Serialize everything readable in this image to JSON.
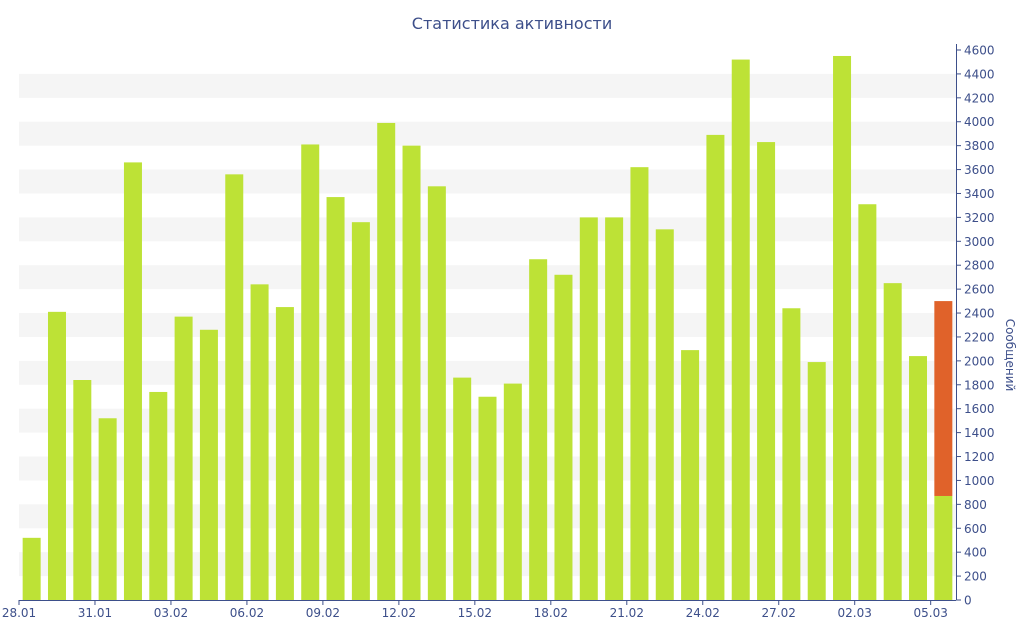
{
  "chart_data": {
    "type": "bar",
    "title": "Статистика активности",
    "xlabel": "",
    "ylabel": "Сообщений",
    "ylim": [
      0,
      4600
    ],
    "y_ticks": [
      0,
      200,
      400,
      600,
      800,
      1000,
      1200,
      1400,
      1600,
      1800,
      2000,
      2200,
      2400,
      2600,
      2800,
      3000,
      3200,
      3400,
      3600,
      3800,
      4000,
      4200,
      4400,
      4600
    ],
    "x_tick_labels": [
      "28.01",
      "31.01",
      "03.02",
      "06.02",
      "09.02",
      "12.02",
      "15.02",
      "18.02",
      "21.02",
      "24.02",
      "27.02",
      "02.03",
      "05.03"
    ],
    "categories": [
      "28.01",
      "29.01",
      "30.01",
      "31.01",
      "01.02",
      "02.02",
      "03.02",
      "04.02",
      "05.02",
      "06.02",
      "07.02",
      "08.02",
      "09.02",
      "10.02",
      "11.02",
      "12.02",
      "13.02",
      "14.02",
      "15.02",
      "16.02",
      "17.02",
      "18.02",
      "19.02",
      "20.02",
      "21.02",
      "22.02",
      "23.02",
      "24.02",
      "25.02",
      "26.02",
      "27.02",
      "28.02",
      "01.03",
      "02.03",
      "03.03",
      "04.03",
      "05.03"
    ],
    "series": [
      {
        "color": "#bde236",
        "values": [
          520,
          2410,
          1840,
          1520,
          3660,
          1740,
          2370,
          2260,
          3560,
          2640,
          2450,
          3810,
          3370,
          3160,
          3990,
          3800,
          3460,
          1860,
          1700,
          1810,
          2850,
          2720,
          3200,
          3200,
          3620,
          3100,
          2090,
          3890,
          4520,
          3830,
          2440,
          1990,
          4550,
          3310,
          2650,
          2040,
          870
        ]
      },
      {
        "color": "#e0622a",
        "values": [
          0,
          0,
          0,
          0,
          0,
          0,
          0,
          0,
          0,
          0,
          0,
          0,
          0,
          0,
          0,
          0,
          0,
          0,
          0,
          0,
          0,
          0,
          0,
          0,
          0,
          0,
          0,
          0,
          0,
          0,
          0,
          0,
          0,
          0,
          0,
          0,
          1630
        ]
      }
    ],
    "stacked": true,
    "grid": "alternating horizontal bands",
    "legend": "none",
    "axis_color": "#3d4f8a",
    "band_color": "#f5f5f5"
  }
}
